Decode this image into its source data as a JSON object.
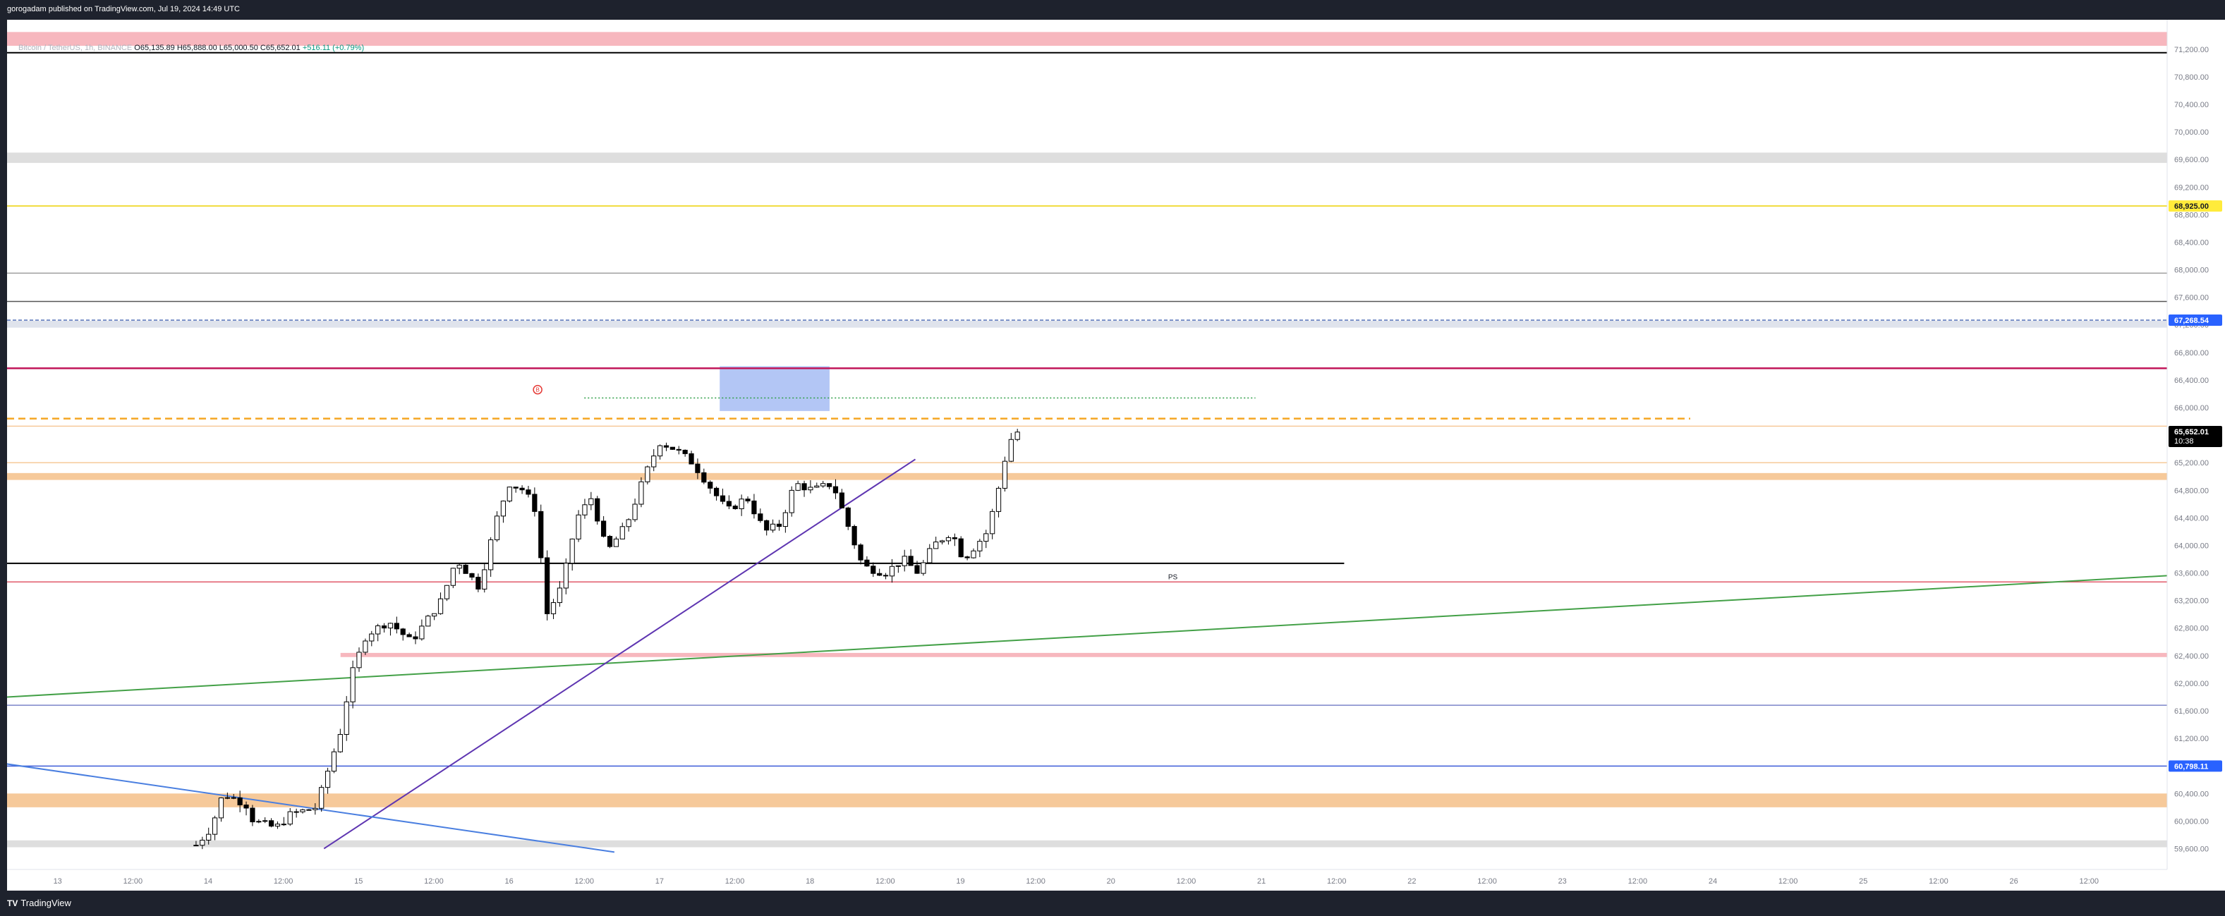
{
  "header": {
    "published": "gorogadam published on TradingView.com, Jul 19, 2024 14:49 UTC"
  },
  "legend": {
    "symbol": "Bitcoin / TetherUS, 1h, BINANCE",
    "o": "65,135.89",
    "h": "65,888.00",
    "l": "65,000.50",
    "c": "65,652.01",
    "change": "+516.11 (+0.79%)"
  },
  "brand": {
    "name": "TradingView"
  },
  "colors": {
    "up": "#ffffff",
    "down": "#000000",
    "frame": "#1e222d"
  },
  "chart_data": {
    "type": "candlestick",
    "ylim": [
      59400,
      71500
    ],
    "x_tick_labels": [
      "13",
      "12:00",
      "14",
      "12:00",
      "15",
      "12:00",
      "16",
      "12:00",
      "17",
      "12:00",
      "18",
      "12:00",
      "19",
      "12:00",
      "20",
      "12:00",
      "21",
      "12:00",
      "22",
      "12:00",
      "23",
      "12:00",
      "24",
      "12:00",
      "25",
      "12:00",
      "26",
      "12:00"
    ],
    "y_ticks": [
      "71,200.00",
      "70,800.00",
      "70,400.00",
      "70,000.00",
      "69,600.00",
      "69,200.00",
      "68,800.00",
      "68,400.00",
      "68,000.00",
      "67,600.00",
      "67,200.00",
      "66,800.00",
      "66,400.00",
      "66,000.00",
      "65,600.00",
      "65,200.00",
      "64,800.00",
      "64,400.00",
      "64,000.00",
      "63,600.00",
      "63,200.00",
      "62,800.00",
      "62,400.00",
      "62,000.00",
      "61,600.00",
      "61,200.00",
      "60,800.00",
      "60,400.00",
      "60,000.00",
      "59,600.00"
    ],
    "price_labels": [
      {
        "text": "68,925.00",
        "price": 68925,
        "bg": "#ffeb3b",
        "fg": "#131722"
      },
      {
        "text": "67,268.54",
        "price": 67268.54,
        "bg": "#2962ff",
        "fg": "#ffffff"
      },
      {
        "text": "60,798.11",
        "price": 60798.11,
        "bg": "#2962ff",
        "fg": "#ffffff"
      },
      {
        "text": "65,652.01",
        "sub": "10:38",
        "price": 65652.01,
        "bg": "#000000",
        "fg": "#ffffff"
      }
    ],
    "annotations": [
      {
        "text": "PS",
        "x": 6.38,
        "price": 63550
      }
    ],
    "zones": [
      {
        "x": [
          -1.5,
          13.5
        ],
        "p": [
          71250,
          71450
        ],
        "color": "#f7b7be"
      },
      {
        "x": [
          -1.5,
          13.5
        ],
        "p": [
          69550,
          69700
        ],
        "color": "#dedede"
      },
      {
        "x": [
          -1.5,
          13.5
        ],
        "p": [
          64950,
          65050
        ],
        "color": "#f6c99a"
      },
      {
        "x": [
          0.88,
          13.5
        ],
        "p": [
          62380,
          62440
        ],
        "color": "#f7b7be"
      },
      {
        "x": [
          -1.5,
          13.5
        ],
        "p": [
          60200,
          60400
        ],
        "color": "#f6c99a"
      },
      {
        "x": [
          -1.5,
          13.5
        ],
        "p": [
          59620,
          59720
        ],
        "color": "#dedede"
      },
      {
        "x": [
          -1.5,
          13.5
        ],
        "p": [
          67160,
          67260
        ],
        "color": "#dfe3ec"
      },
      {
        "x": [
          3.4,
          4.13
        ],
        "p": [
          65950,
          66600
        ],
        "color": "#b3c6f5"
      }
    ],
    "levels": [
      {
        "x": [
          -1.5,
          13.5
        ],
        "price": 71150,
        "color": "#000000",
        "width": 2
      },
      {
        "x": [
          -1.5,
          13.5
        ],
        "price": 68925,
        "color": "#f0dc3c",
        "width": 2
      },
      {
        "x": [
          -1.5,
          13.5
        ],
        "price": 67950,
        "color": "#9e9e9e",
        "width": 1.5
      },
      {
        "x": [
          -1.5,
          13.5
        ],
        "price": 67540,
        "color": "#555555",
        "width": 1.5
      },
      {
        "x": [
          -1.5,
          13.5
        ],
        "price": 67268.54,
        "color": "#5470b8",
        "width": 1.5,
        "dash": "5,3"
      },
      {
        "x": [
          -1.5,
          13.5
        ],
        "price": 66570,
        "color": "#c2185b",
        "width": 2.5
      },
      {
        "x": [
          -1.5,
          9.85
        ],
        "price": 65840,
        "color": "#f5a623",
        "width": 2.5,
        "dash": "10,6"
      },
      {
        "x": [
          -1.5,
          13.5
        ],
        "price": 65730,
        "color": "#f6c99a",
        "width": 1.5
      },
      {
        "x": [
          -1.5,
          13.5
        ],
        "price": 65200,
        "color": "#f6c99a",
        "width": 1.5
      },
      {
        "x": [
          -1.5,
          7.55
        ],
        "price": 63740,
        "color": "#000000",
        "width": 2
      },
      {
        "x": [
          -1.5,
          13.5
        ],
        "price": 63470,
        "color": "#e05a6a",
        "width": 1.5
      },
      {
        "x": [
          -1.5,
          13.5
        ],
        "price": 61680,
        "color": "#7b84c9",
        "width": 1.5
      },
      {
        "x": [
          -1.5,
          13.5
        ],
        "price": 60798.11,
        "color": "#3d5bd9",
        "width": 1.5
      },
      {
        "x": [
          2.5,
          6.96
        ],
        "price": 66140,
        "color": "#2e9e46",
        "width": 1.5,
        "dash": "2,3"
      }
    ],
    "trendlines": [
      {
        "x1": -1.5,
        "p1": 61780,
        "x2": 13.5,
        "p2": 63620,
        "color": "#43a047",
        "width": 2
      },
      {
        "x1": 0.77,
        "p1": 59600,
        "x2": 4.7,
        "p2": 65250,
        "color": "#5e35b1",
        "width": 2
      },
      {
        "x1": -1.5,
        "p1": 60880,
        "x2": 2.7,
        "p2": 59550,
        "color": "#4a7fe0",
        "width": 2
      }
    ],
    "circle_marker": {
      "x": 2.19,
      "price": 66260,
      "color": "#e53935"
    },
    "candles": []
  }
}
